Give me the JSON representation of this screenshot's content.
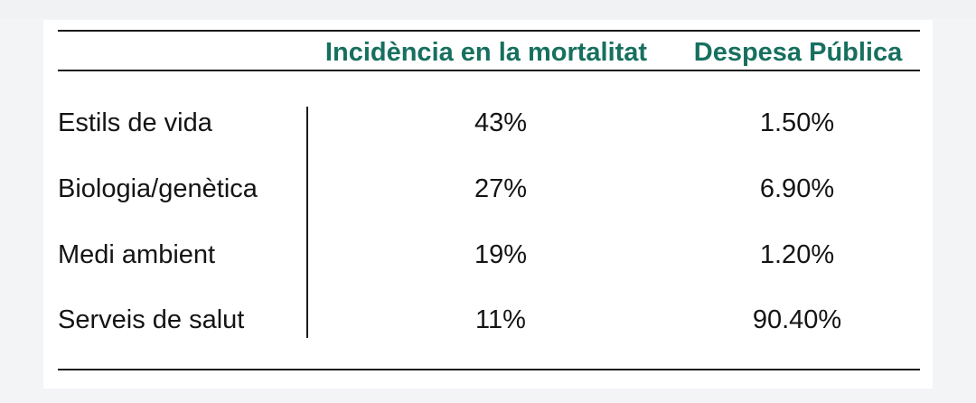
{
  "table": {
    "headers": [
      "Incidència en la mortalitat",
      "Despesa Pública"
    ],
    "rows": [
      {
        "label": "Estils de vida",
        "mortality": "43%",
        "spending": "1.50%"
      },
      {
        "label": "Biologia/genètica",
        "mortality": "27%",
        "spending": "6.90%"
      },
      {
        "label": "Medi ambient",
        "mortality": "19%",
        "spending": "1.20%"
      },
      {
        "label": "Serveis de salut",
        "mortality": "11%",
        "spending": "90.40%"
      }
    ]
  },
  "colors": {
    "header_text": "#17705f",
    "body_text": "#141414",
    "rules": "#1a1a1a",
    "panel": "#ffffff",
    "background": "#f3f4f6"
  }
}
